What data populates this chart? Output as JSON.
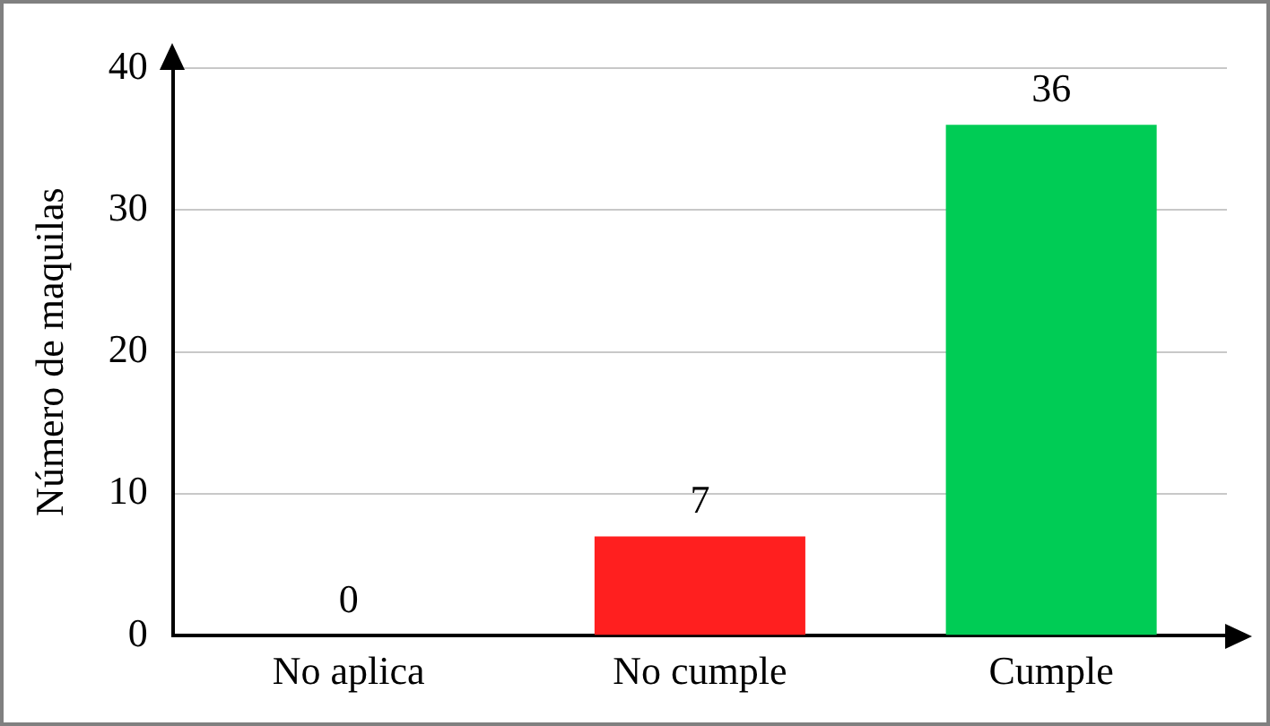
{
  "chart_data": {
    "type": "bar",
    "ylabel": "Número de maquilas",
    "categories": [
      "No aplica",
      "No cumple",
      "Cumple"
    ],
    "values": [
      0,
      7,
      36
    ],
    "colors": [
      "#ff1f1f",
      "#ff1f1f",
      "#00cc55"
    ],
    "ylim": [
      0,
      40
    ],
    "yticks": [
      0,
      10,
      20,
      30,
      40
    ],
    "grid": "y",
    "legend": false,
    "data_labels": true
  }
}
